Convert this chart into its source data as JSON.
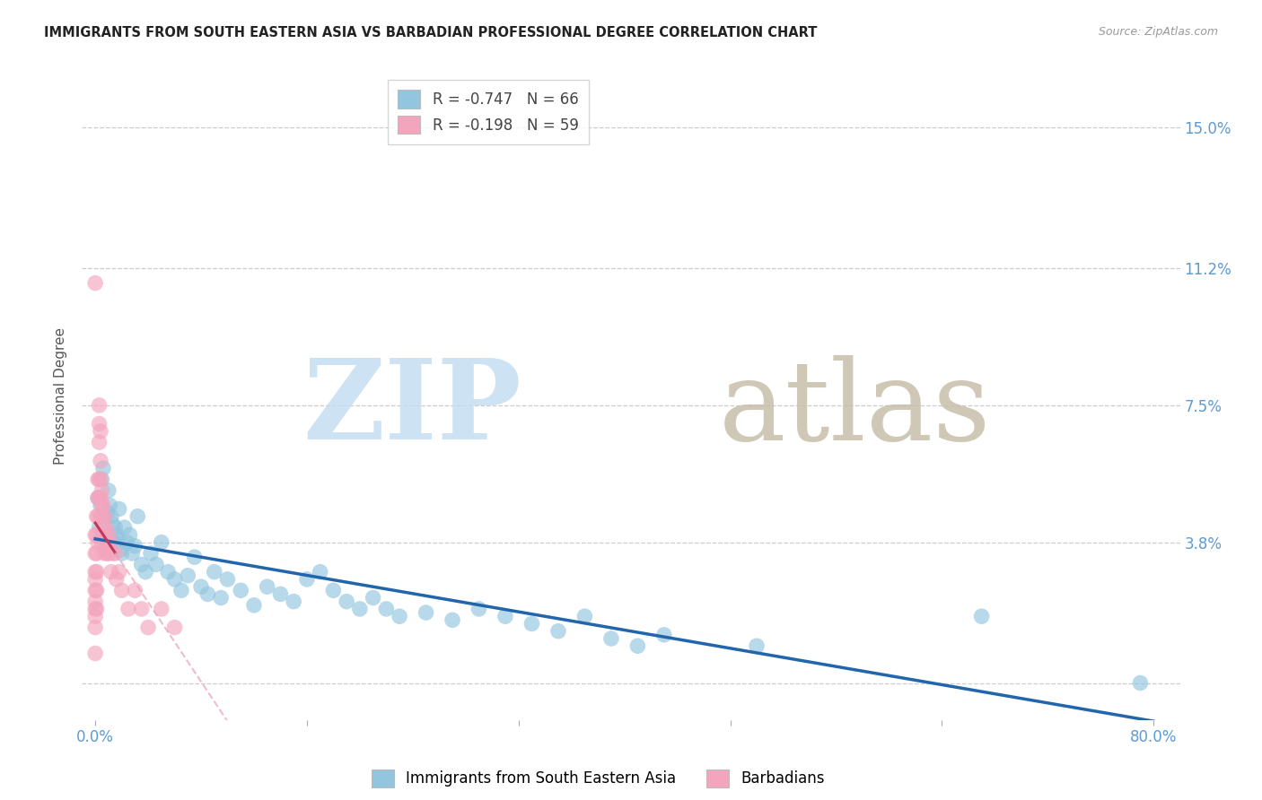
{
  "title": "IMMIGRANTS FROM SOUTH EASTERN ASIA VS BARBADIAN PROFESSIONAL DEGREE CORRELATION CHART",
  "source": "Source: ZipAtlas.com",
  "ylabel": "Professional Degree",
  "xlim": [
    -1.0,
    82
  ],
  "ylim": [
    -1.0,
    16.5
  ],
  "x_ticks": [
    0.0,
    16.0,
    32.0,
    48.0,
    64.0,
    80.0
  ],
  "y_ticks": [
    0.0,
    3.8,
    7.5,
    11.2,
    15.0
  ],
  "y_tick_labels": [
    "",
    "3.8%",
    "7.5%",
    "11.2%",
    "15.0%"
  ],
  "blue_R": -0.747,
  "blue_N": 66,
  "pink_R": -0.198,
  "pink_N": 59,
  "blue_color": "#92c5de",
  "pink_color": "#f4a5be",
  "blue_line_color": "#2166ac",
  "pink_line_color": "#c0395a",
  "pink_dash_color": "#e8a0b8",
  "watermark_zip_color": "#c5ddf0",
  "watermark_atlas_color": "#c8bfaa",
  "legend_label_blue": "Immigrants from South Eastern Asia",
  "legend_label_pink": "Barbadians",
  "tick_color": "#5b9bd5",
  "blue_x": [
    0.2,
    0.3,
    0.4,
    0.5,
    0.6,
    0.7,
    0.8,
    0.9,
    1.0,
    1.1,
    1.2,
    1.3,
    1.4,
    1.5,
    1.6,
    1.7,
    1.8,
    1.9,
    2.0,
    2.2,
    2.4,
    2.6,
    2.8,
    3.0,
    3.2,
    3.5,
    3.8,
    4.2,
    4.6,
    5.0,
    5.5,
    6.0,
    6.5,
    7.0,
    7.5,
    8.0,
    8.5,
    9.0,
    9.5,
    10.0,
    11.0,
    12.0,
    13.0,
    14.0,
    15.0,
    16.0,
    17.0,
    18.0,
    19.0,
    20.0,
    21.0,
    22.0,
    23.0,
    25.0,
    27.0,
    29.0,
    31.0,
    33.0,
    35.0,
    37.0,
    39.0,
    41.0,
    43.0,
    50.0,
    67.0,
    79.0
  ],
  "blue_y": [
    5.0,
    4.2,
    4.8,
    5.5,
    5.8,
    4.5,
    4.0,
    4.6,
    5.2,
    4.8,
    4.5,
    4.3,
    3.8,
    4.2,
    4.0,
    3.9,
    4.7,
    3.6,
    3.5,
    4.2,
    3.8,
    4.0,
    3.5,
    3.7,
    4.5,
    3.2,
    3.0,
    3.5,
    3.2,
    3.8,
    3.0,
    2.8,
    2.5,
    2.9,
    3.4,
    2.6,
    2.4,
    3.0,
    2.3,
    2.8,
    2.5,
    2.1,
    2.6,
    2.4,
    2.2,
    2.8,
    3.0,
    2.5,
    2.2,
    2.0,
    2.3,
    2.0,
    1.8,
    1.9,
    1.7,
    2.0,
    1.8,
    1.6,
    1.4,
    1.8,
    1.2,
    1.0,
    1.3,
    1.0,
    1.8,
    0.0
  ],
  "pink_x": [
    0.0,
    0.0,
    0.0,
    0.0,
    0.0,
    0.0,
    0.0,
    0.0,
    0.0,
    0.0,
    0.1,
    0.1,
    0.1,
    0.1,
    0.1,
    0.1,
    0.2,
    0.2,
    0.2,
    0.2,
    0.3,
    0.3,
    0.3,
    0.3,
    0.3,
    0.4,
    0.4,
    0.4,
    0.4,
    0.4,
    0.5,
    0.5,
    0.5,
    0.5,
    0.5,
    0.6,
    0.6,
    0.7,
    0.7,
    0.7,
    0.8,
    0.8,
    0.9,
    0.9,
    1.0,
    1.0,
    1.1,
    1.2,
    1.3,
    1.5,
    1.6,
    1.8,
    2.0,
    2.5,
    3.0,
    3.5,
    4.0,
    5.0,
    6.0
  ],
  "pink_y": [
    4.0,
    3.5,
    3.0,
    2.8,
    2.5,
    2.2,
    2.0,
    1.8,
    1.5,
    0.8,
    4.5,
    4.0,
    3.5,
    3.0,
    2.5,
    2.0,
    5.5,
    5.0,
    4.5,
    3.8,
    7.5,
    7.0,
    6.5,
    5.5,
    5.0,
    6.8,
    6.0,
    5.5,
    5.0,
    4.5,
    5.2,
    4.8,
    4.5,
    4.0,
    3.8,
    4.8,
    4.2,
    4.5,
    4.0,
    3.5,
    4.2,
    3.8,
    3.8,
    3.5,
    4.0,
    3.5,
    3.8,
    3.0,
    3.5,
    3.5,
    2.8,
    3.0,
    2.5,
    2.0,
    2.5,
    2.0,
    1.5,
    2.0,
    1.5
  ],
  "pink_outlier_x": [
    0.0
  ],
  "pink_outlier_y": [
    10.8
  ]
}
